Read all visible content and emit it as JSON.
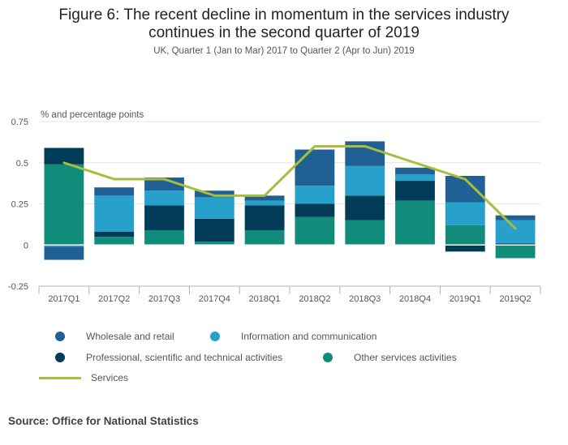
{
  "title_line1": "Figure 6: The recent decline in momentum in the services industry",
  "title_line2": "continues in the second quarter of 2019",
  "subtitle": "UK, Quarter 1 (Jan to Mar) 2017 to Quarter 2 (Apr to Jun) 2019",
  "source": "Source: Office for National Statistics",
  "colors": {
    "wholesale": "#206095",
    "info": "#27a0cc",
    "professional": "#003c57",
    "other": "#118c7b",
    "services": "#a8bd3a",
    "grid": "#e6e6e6",
    "axis": "#b3b3b3",
    "text": "#555555"
  },
  "chart_data": {
    "type": "bar",
    "stacked": true,
    "title": "Figure 6: The recent decline in momentum in the services industry continues in the second quarter of 2019",
    "ylabel": "% and percentage points",
    "xlabel": "",
    "ylim": [
      -0.25,
      0.75
    ],
    "yticks": [
      -0.25,
      0,
      0.25,
      0.5,
      0.75
    ],
    "ytick_labels": [
      "-0.25",
      "0",
      "0.25",
      "0.5",
      "0.75"
    ],
    "categories": [
      "2017Q1",
      "2017Q2",
      "2017Q3",
      "2017Q4",
      "2018Q1",
      "2018Q2",
      "2018Q3",
      "2018Q4",
      "2019Q1",
      "2019Q2"
    ],
    "series": [
      {
        "name": "Other services activities",
        "key": "other",
        "values": [
          0.49,
          0.05,
          0.09,
          0.02,
          0.09,
          0.17,
          0.15,
          0.27,
          0.12,
          -0.08
        ]
      },
      {
        "name": "Professional, scientific and technical activities",
        "key": "professional",
        "values": [
          0.1,
          0.03,
          0.15,
          0.14,
          0.15,
          0.08,
          0.15,
          0.12,
          -0.04,
          0.01
        ]
      },
      {
        "name": "Information and communication",
        "key": "info",
        "values": [
          -0.01,
          0.22,
          0.09,
          0.13,
          0.03,
          0.11,
          0.18,
          0.04,
          0.14,
          0.14
        ]
      },
      {
        "name": "Wholesale and retail",
        "key": "wholesale",
        "values": [
          -0.08,
          0.05,
          0.08,
          0.04,
          0.03,
          0.22,
          0.15,
          0.04,
          0.16,
          0.03
        ]
      }
    ],
    "line": {
      "name": "Services",
      "key": "services",
      "values": [
        0.5,
        0.4,
        0.4,
        0.3,
        0.3,
        0.6,
        0.6,
        0.5,
        0.4,
        0.1
      ]
    }
  },
  "legend": [
    {
      "label": "Wholesale and retail",
      "key": "wholesale",
      "shape": "dot"
    },
    {
      "label": "Information and communication",
      "key": "info",
      "shape": "dot"
    },
    {
      "label": "Professional, scientific and technical activities",
      "key": "professional",
      "shape": "dot"
    },
    {
      "label": "Other services activities",
      "key": "other",
      "shape": "dot"
    },
    {
      "label": "Services",
      "key": "services",
      "shape": "line"
    }
  ]
}
